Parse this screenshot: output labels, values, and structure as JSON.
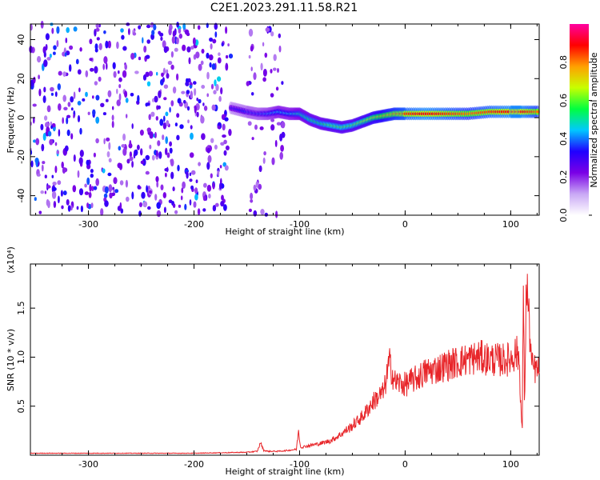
{
  "title": "C2E1.2023.291.11.58.R21",
  "chart_data": [
    {
      "type": "heatmap",
      "title": "C2E1.2023.291.11.58.R21",
      "xlabel": "Height of straight line (km)",
      "ylabel": "Frequency (Hz)",
      "xlim": [
        -355,
        127
      ],
      "ylim": [
        -50,
        48
      ],
      "xticks": [
        -300,
        -200,
        -100,
        0,
        100
      ],
      "yticks": [
        -40,
        -20,
        0,
        20,
        40
      ],
      "colorbar": {
        "label": "Normalized spectral amplitude",
        "range": [
          0,
          1
        ],
        "ticks": [
          0.0,
          0.2,
          0.4,
          0.6,
          0.8
        ],
        "colors": [
          "#ffffff",
          "#c9a8f5",
          "#7a00e6",
          "#2000ff",
          "#00c8ff",
          "#00ff40",
          "#c8ff00",
          "#ffa000",
          "#ff0000",
          "#ff00a0"
        ]
      },
      "noise_regions": [
        {
          "x": [
            -355,
            -165
          ],
          "amplitude": 0.35
        },
        {
          "x": [
            -150,
            -115
          ],
          "amplitude": 0.2
        }
      ],
      "ridge": {
        "x": [
          -165,
          -150,
          -140,
          -130,
          -120,
          -110,
          -100,
          -90,
          -80,
          -70,
          -60,
          -50,
          -40,
          -30,
          -20,
          -10,
          0,
          20,
          40,
          60,
          80,
          100,
          110,
          127
        ],
        "freq": [
          5,
          3,
          2,
          2,
          3,
          2,
          2,
          -1,
          -3,
          -4,
          -5,
          -4,
          -2,
          0,
          1,
          2,
          2,
          2,
          2,
          2,
          3,
          3,
          3,
          3
        ],
        "amplitude": [
          0.3,
          0.35,
          0.35,
          0.4,
          0.45,
          0.45,
          0.5,
          0.55,
          0.55,
          0.6,
          0.6,
          0.6,
          0.65,
          0.7,
          0.75,
          0.8,
          0.85,
          0.9,
          0.85,
          0.8,
          0.85,
          0.9,
          0.9,
          0.8
        ]
      }
    },
    {
      "type": "line",
      "xlabel": "Height of straight line (km)",
      "ylabel": "SNR (10 * v/v)",
      "y_multiplier": "(x10⁴)",
      "xlim": [
        -355,
        127
      ],
      "ylim": [
        0,
        1.95
      ],
      "xticks": [
        -300,
        -200,
        -100,
        0,
        100
      ],
      "yticks": [
        0.5,
        1.0,
        1.5
      ],
      "color": "#e8262a",
      "series": [
        {
          "x": [
            -355,
            -300,
            -250,
            -200,
            -150,
            -140,
            -137,
            -134,
            -130,
            -120,
            -110,
            -103,
            -101,
            -99,
            -90,
            -80,
            -70,
            -60,
            -50,
            -40,
            -30,
            -20,
            -15,
            -10,
            0,
            10,
            20,
            30,
            40,
            50,
            60,
            70,
            80,
            90,
            100,
            105,
            108,
            110,
            111,
            112,
            113,
            115,
            120,
            127
          ],
          "y": [
            0.02,
            0.02,
            0.02,
            0.02,
            0.03,
            0.04,
            0.13,
            0.05,
            0.04,
            0.04,
            0.05,
            0.06,
            0.25,
            0.08,
            0.1,
            0.12,
            0.15,
            0.22,
            0.3,
            0.4,
            0.55,
            0.65,
            0.95,
            0.75,
            0.72,
            0.78,
            0.85,
            0.88,
            0.92,
            0.95,
            0.98,
            1.0,
            0.98,
            0.97,
            0.98,
            1.05,
            1.0,
            0.4,
            0.25,
            1.9,
            0.5,
            1.8,
            0.9,
            0.85
          ]
        }
      ]
    }
  ]
}
